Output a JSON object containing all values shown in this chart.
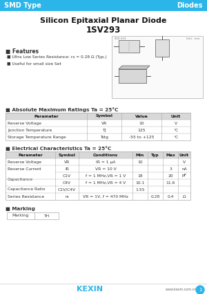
{
  "title1": "Silicon Epitaxial Planar Diode",
  "title2": "1SV293",
  "header_left": "SMD Type",
  "header_right": "Diodes",
  "header_bg": "#29ABE2",
  "header_text_color": "#FFFFFF",
  "features_title": "■ Features",
  "features": [
    "■ Ultra Low Series Resistance: rs = 0.28 Ω (Typ.)",
    "■ Useful for small size Set"
  ],
  "abs_max_title": "■ Absolute Maximum Ratings Ta = 25°C",
  "abs_max_headers": [
    "Parameter",
    "Symbol",
    "Value",
    "Unit"
  ],
  "abs_max_rows": [
    [
      "Reverse Voltage",
      "VR",
      "10",
      "V"
    ],
    [
      "Junction Temperature",
      "TJ",
      "125",
      "°C"
    ],
    [
      "Storage Temperature Range",
      "Tstg",
      "-55 to +125",
      "°C"
    ]
  ],
  "elec_char_title": "■ Electrical Characteristics Ta = 25°C",
  "elec_headers": [
    "Parameter",
    "Symbol",
    "Conditions",
    "Min",
    "Typ",
    "Max",
    "Unit"
  ],
  "elec_rows": [
    [
      "Reverse Voltage",
      "VR",
      "IR = 1 μA",
      "10",
      "",
      "",
      "V"
    ],
    [
      "Reverse Current",
      "IR",
      "VR = 10 V",
      "",
      "",
      "3",
      "nA"
    ],
    [
      "Capacitance",
      "C1V",
      "f = 1 MHz,VR = 1 V",
      "18",
      "",
      "20",
      "pF"
    ],
    [
      "",
      "C4V",
      "f = 1 MHz,VR = 4 V",
      "10.1",
      "",
      "11.6",
      ""
    ],
    [
      "Capacitance Ratio",
      "C1V/C4V",
      "",
      "1.55",
      "",
      "",
      ""
    ],
    [
      "Series Resistance",
      "rs",
      "VR = 1V, f = 470 MHz",
      "",
      "0.28",
      "0.4",
      "Ω"
    ]
  ],
  "marking_title": "■ Marking",
  "marking_row": [
    "Marking",
    "TH"
  ],
  "footer_logo": "KEXIN",
  "footer_url": "www.kexin.com.cn",
  "bg_color": "#FFFFFF",
  "header_bg_color": "#2BB5E8",
  "table_header_bg": "#D8D8D8",
  "table_border_color": "#AAAAAA",
  "body_color": "#333333",
  "title_color": "#111111"
}
